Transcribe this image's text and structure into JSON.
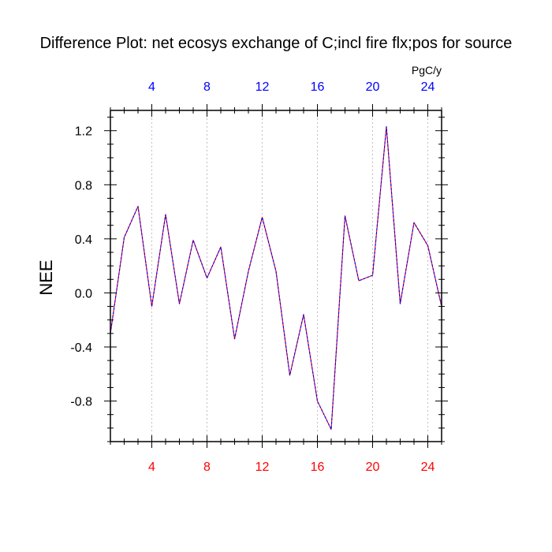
{
  "chart_data": {
    "type": "line",
    "title": "Difference Plot: net ecosys exchange of C;incl fire flx;pos for source",
    "units": "PgC/y",
    "ylabel": "NEE",
    "xlim": [
      1,
      25
    ],
    "ylim": [
      -1.1,
      1.35
    ],
    "x_ticks": [
      4,
      8,
      12,
      16,
      20,
      24
    ],
    "x_tick_labels": [
      "4",
      "8",
      "12",
      "16",
      "20",
      "24"
    ],
    "y_ticks": [
      -0.8,
      -0.4,
      0.0,
      0.4,
      0.8,
      1.2
    ],
    "y_tick_labels": [
      "-0.8",
      "-0.4",
      "0.0",
      "0.4",
      "0.8",
      "1.2"
    ],
    "grid": "vertical dashed at x ticks",
    "x": [
      1,
      2,
      3,
      4,
      5,
      6,
      7,
      8,
      9,
      10,
      11,
      12,
      13,
      14,
      15,
      16,
      17,
      18,
      19,
      20,
      21,
      22,
      23,
      24,
      25
    ],
    "series": [
      {
        "values": [
          -0.3,
          0.41,
          0.64,
          -0.1,
          0.58,
          -0.08,
          0.39,
          0.11,
          0.34,
          -0.34,
          0.16,
          0.56,
          0.16,
          -0.61,
          -0.16,
          -0.8,
          -1.01,
          0.57,
          0.09,
          0.13,
          1.23,
          -0.08,
          0.52,
          0.35,
          -0.1
        ]
      }
    ],
    "colors": {
      "bottom_axis_labels": "#ff0000",
      "top_axis_labels": "#0000ff",
      "line_primary": "#ff0000",
      "line_secondary": "#0000ff",
      "text": "#000000"
    }
  }
}
